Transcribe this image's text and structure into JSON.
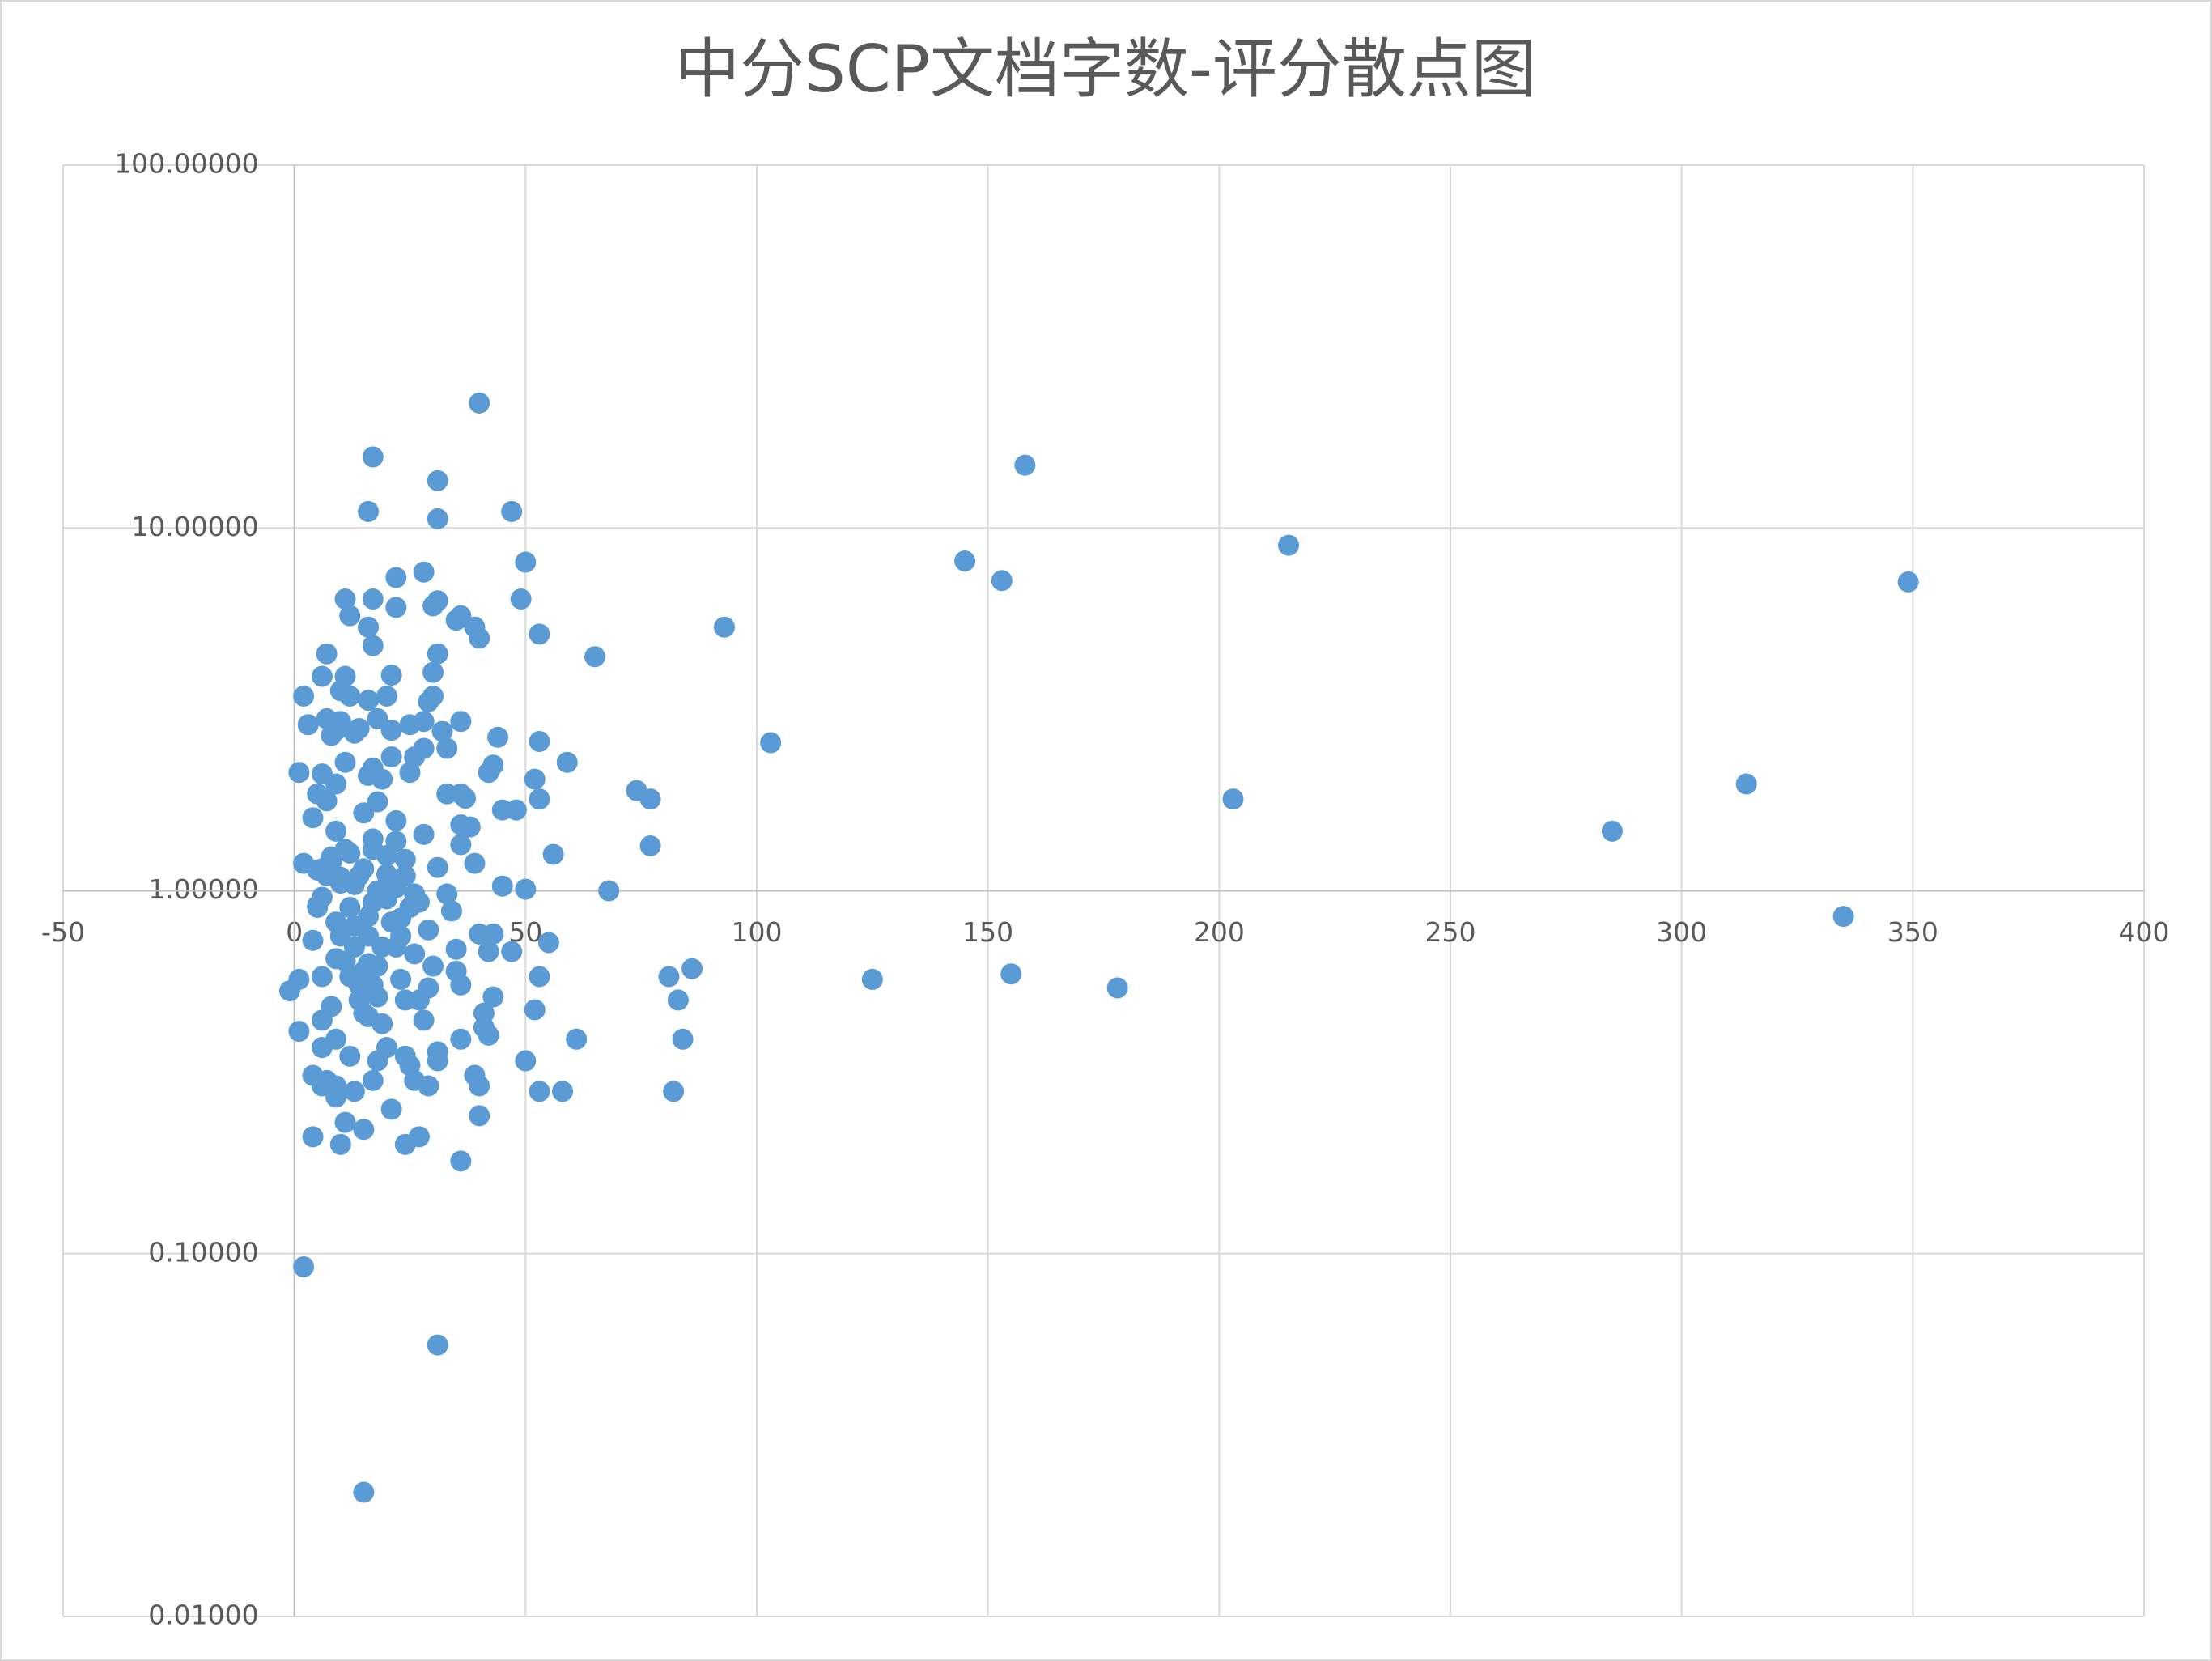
{
  "chart_data": {
    "type": "scatter",
    "title": "中分SCP文档字数-评分散点图",
    "color": "#5b9bd5",
    "yscale": "log",
    "grid": true,
    "xlim": [
      -50,
      400
    ],
    "xticks": [
      -50,
      0,
      50,
      100,
      150,
      200,
      250,
      300,
      350,
      400
    ],
    "ylim": [
      0.01,
      100
    ],
    "yticks": [
      {
        "value": 0.01,
        "label": "0.01000"
      },
      {
        "value": 0.1,
        "label": "0.10000"
      },
      {
        "value": 1,
        "label": "1.00000"
      },
      {
        "value": 10,
        "label": "10.00000"
      },
      {
        "value": 100,
        "label": "100.00000"
      }
    ],
    "x_axis_crosses": 1,
    "y_axis_crosses": 0,
    "x": [
      40,
      17,
      158,
      31,
      16,
      47,
      31,
      215,
      145,
      50,
      153,
      349,
      28,
      22,
      11,
      17,
      49,
      31,
      22,
      30,
      12,
      36,
      35,
      16,
      39,
      93,
      53,
      40,
      17,
      7,
      31,
      65,
      21,
      30,
      11,
      6,
      10,
      20,
      12,
      2,
      30,
      29,
      16,
      3,
      7,
      10,
      18,
      25,
      28,
      36,
      21,
      9,
      32,
      8,
      13,
      14,
      44,
      53,
      103,
      33,
      28,
      21,
      59,
      11,
      26,
      43,
      17,
      42,
      1,
      25,
      6,
      16,
      9,
      19,
      52,
      314,
      74,
      33,
      36,
      5,
      18,
      7,
      77,
      203,
      37,
      53,
      45,
      48,
      4,
      15,
      22,
      36,
      38,
      285,
      9,
      28,
      22,
      17,
      36,
      77,
      56,
      12,
      8,
      24,
      39,
      2,
      31,
      5,
      20,
      10,
      13,
      45,
      50,
      68,
      33,
      6,
      17,
      27,
      5,
      34,
      23,
      335,
      9,
      29,
      16,
      40,
      55,
      43,
      4,
      22,
      13,
      42,
      47,
      35,
      26,
      11,
      16,
      30,
      86,
      81,
      35,
      6,
      53,
      155,
      1,
      125,
      23,
      36,
      14,
      29,
      178,
      -1,
      18,
      43,
      83,
      24,
      8,
      27,
      52,
      41,
      15,
      6,
      19,
      28,
      41,
      1,
      42,
      84,
      9,
      61,
      36,
      6,
      20,
      31,
      24,
      12,
      31,
      50,
      18,
      25,
      4,
      7,
      39,
      26,
      17,
      29,
      40,
      9,
      13,
      58,
      53,
      82,
      6,
      9,
      21,
      40,
      11,
      15,
      4,
      27,
      24,
      10,
      36,
      2,
      31,
      15,
      10,
      14,
      18,
      20,
      12,
      8,
      16,
      22,
      6,
      19,
      15,
      17,
      13,
      25,
      11,
      7,
      21,
      9,
      14,
      16,
      18,
      12,
      24,
      26,
      20,
      15,
      10,
      5,
      23,
      17
    ],
    "y": [
      22.1,
      15.7,
      14.9,
      13.5,
      11.1,
      11.1,
      10.6,
      8.96,
      8.11,
      8.05,
      7.16,
      7.1,
      7.56,
      7.3,
      6.37,
      6.37,
      6.37,
      6.3,
      6.04,
      6.1,
      5.73,
      5.73,
      5.57,
      5.33,
      5.33,
      5.33,
      5.1,
      4.97,
      4.74,
      4.5,
      4.5,
      4.42,
      3.93,
      4.0,
      3.9,
      3.9,
      3.56,
      3.44,
      3.44,
      3.44,
      3.44,
      3.32,
      3.35,
      2.87,
      2.98,
      2.93,
      2.98,
      2.87,
      2.93,
      2.93,
      2.77,
      2.77,
      2.75,
      2.68,
      2.72,
      2.8,
      2.65,
      2.58,
      2.56,
      2.47,
      2.47,
      2.34,
      2.26,
      2.26,
      2.34,
      2.22,
      2.18,
      2.12,
      2.12,
      2.12,
      2.1,
      2.08,
      1.97,
      2.03,
      2.03,
      1.97,
      1.89,
      1.85,
      1.85,
      1.85,
      1.76,
      1.77,
      1.79,
      1.79,
      1.8,
      1.79,
      1.67,
      1.67,
      1.59,
      1.64,
      1.56,
      1.52,
      1.5,
      1.46,
      1.46,
      1.43,
      1.37,
      1.39,
      1.34,
      1.33,
      1.26,
      1.27,
      1.24,
      1.22,
      1.19,
      1.19,
      1.16,
      1.14,
      1.11,
      1.09,
      1.04,
      1.03,
      1.01,
      1.0,
      0.98,
      0.96,
      0.93,
      0.93,
      0.91,
      0.88,
      0.84,
      0.85,
      0.82,
      0.78,
      0.75,
      0.76,
      0.72,
      0.76,
      0.73,
      0.7,
      0.7,
      0.68,
      0.68,
      0.69,
      0.67,
      0.64,
      0.63,
      0.62,
      0.61,
      0.58,
      0.6,
      0.58,
      0.58,
      0.59,
      0.57,
      0.57,
      0.57,
      0.55,
      0.55,
      0.54,
      0.54,
      0.53,
      0.51,
      0.51,
      0.5,
      0.5,
      0.48,
      0.5,
      0.47,
      0.46,
      0.46,
      0.44,
      0.43,
      0.44,
      0.42,
      0.41,
      0.4,
      0.39,
      0.39,
      0.39,
      0.39,
      0.37,
      0.37,
      0.36,
      0.35,
      0.35,
      0.34,
      0.34,
      0.34,
      0.33,
      0.31,
      0.3,
      0.31,
      0.3,
      0.3,
      0.29,
      0.29,
      0.29,
      0.28,
      0.28,
      0.28,
      0.28,
      0.29,
      0.27,
      0.25,
      0.24,
      0.23,
      0.22,
      0.21,
      0.21,
      0.2,
      0.2,
      0.18,
      0.092,
      0.056,
      0.022,
      1.05,
      1.1,
      1.0,
      0.95,
      0.9,
      1.2,
      0.85,
      1.02,
      1.15,
      0.7,
      0.6,
      0.55,
      0.8,
      0.9,
      1.3,
      1.1,
      0.82,
      0.65,
      0.5,
      0.45,
      0.62,
      0.58,
      1.1,
      0.98,
      1.25,
      1.15,
      0.75,
      0.9,
      0.75,
      1.3
    ]
  }
}
